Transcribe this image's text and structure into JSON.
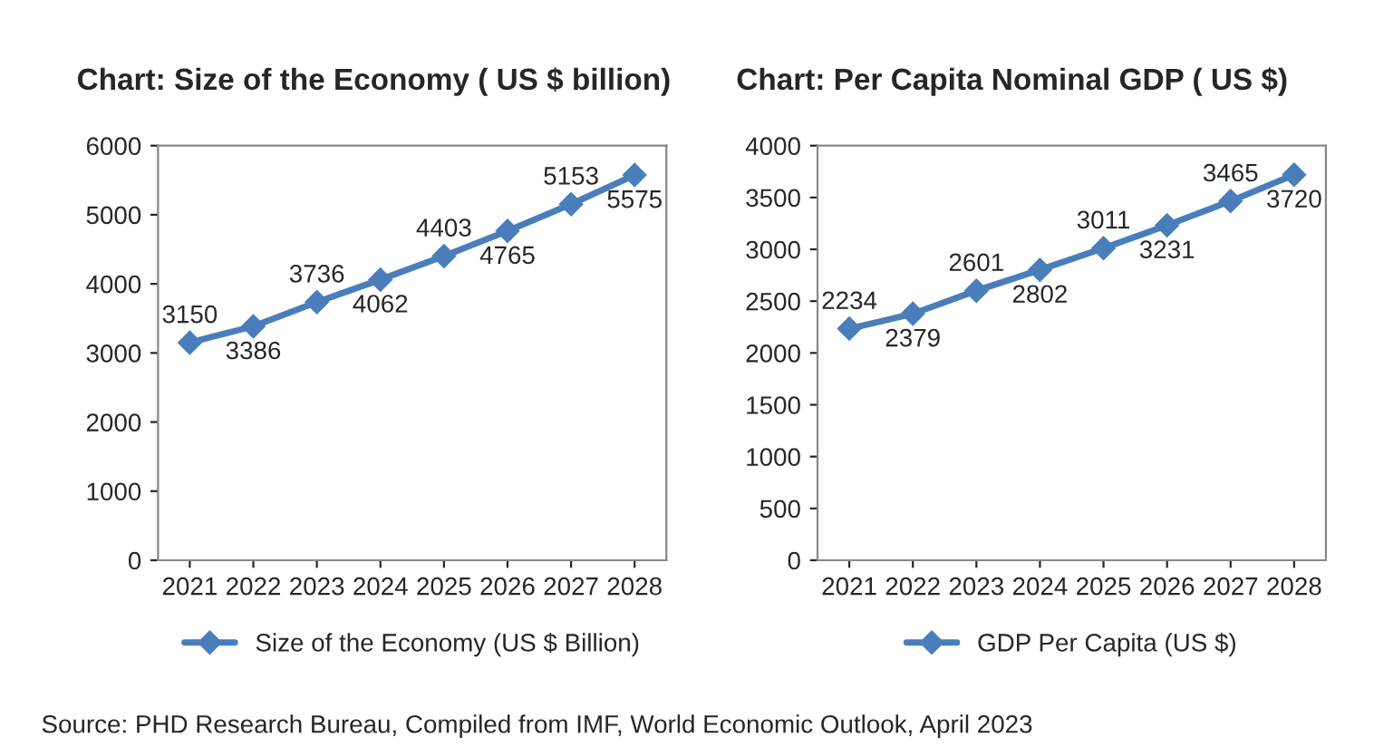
{
  "chart_data": [
    {
      "type": "line",
      "title": "Chart: Size of the Economy ( US $ billion)",
      "categories": [
        "2021",
        "2022",
        "2023",
        "2024",
        "2025",
        "2026",
        "2027",
        "2028"
      ],
      "series": [
        {
          "name": "Size of the Economy (US $ Billion)",
          "color": "#4a7ebb",
          "values": [
            3150,
            3386,
            3736,
            4062,
            4403,
            4765,
            5153,
            5575
          ]
        }
      ],
      "ylim": [
        0,
        6000
      ],
      "yticks": [
        0,
        1000,
        2000,
        3000,
        4000,
        5000,
        6000
      ],
      "grid": false,
      "legend": "bottom",
      "marker": "diamond",
      "line_style": "solid",
      "data_labels": true,
      "annotations": [
        "Source: PHD Research Bureau, Compiled from IMF, World Economic Outlook, April 2023"
      ]
    },
    {
      "type": "line",
      "title": "Chart: Per Capita Nominal GDP ( US $)",
      "categories": [
        "2021",
        "2022",
        "2023",
        "2024",
        "2025",
        "2026",
        "2027",
        "2028"
      ],
      "series": [
        {
          "name": "GDP Per Capita (US $)",
          "color": "#4a7ebb",
          "values": [
            2234,
            2379,
            2601,
            2802,
            3011,
            3231,
            3465,
            3720
          ]
        }
      ],
      "ylim": [
        0,
        4000
      ],
      "yticks": [
        0,
        500,
        1000,
        1500,
        2000,
        2500,
        3000,
        3500,
        4000
      ],
      "grid": false,
      "legend": "bottom",
      "marker": "diamond",
      "line_style": "solid",
      "data_labels": true
    }
  ]
}
